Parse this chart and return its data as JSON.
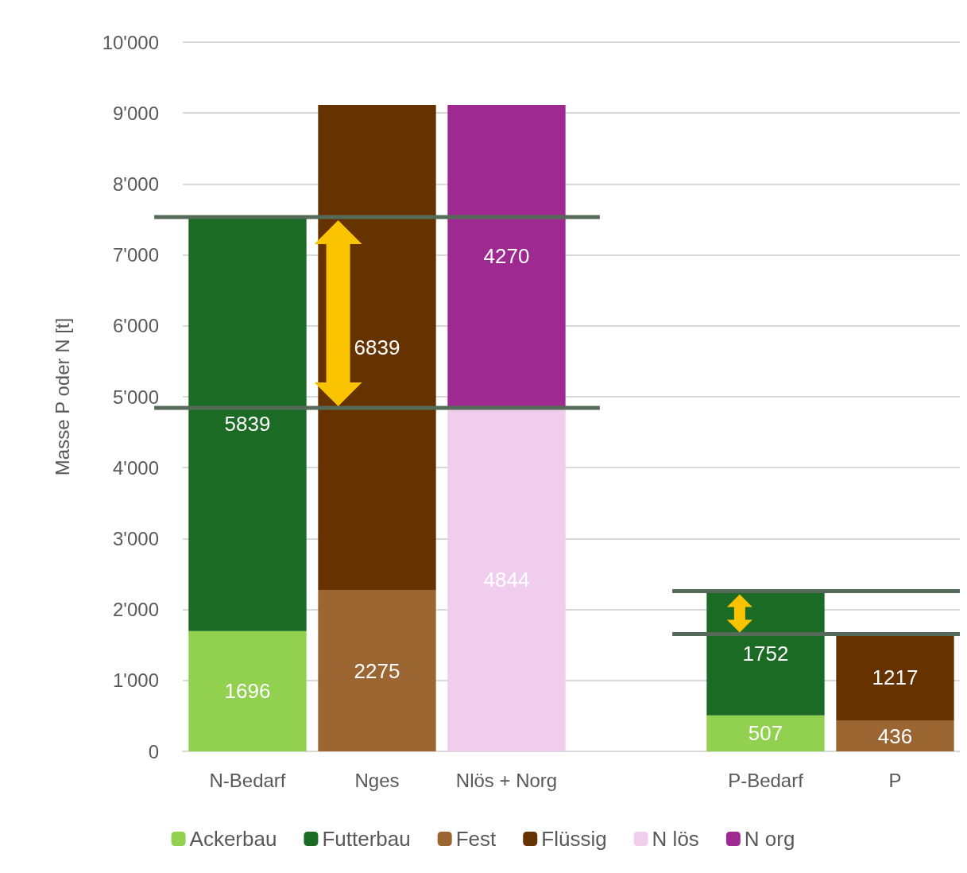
{
  "chart_data": {
    "type": "bar",
    "stacked": true,
    "ylabel": "Masse P oder N [t]",
    "categories": [
      "N-Bedarf",
      "Nges",
      "Nlös + Norg",
      null,
      "P-Bedarf",
      "P"
    ],
    "series": [
      {
        "name": "Ackerbau",
        "color": "#92d050",
        "values": [
          1696,
          null,
          null,
          null,
          507,
          null
        ]
      },
      {
        "name": "Futterbau",
        "color": "#1b6b25",
        "values": [
          5839,
          null,
          null,
          null,
          1752,
          null
        ]
      },
      {
        "name": "Fest",
        "color": "#9c6632",
        "values": [
          null,
          2275,
          null,
          null,
          null,
          436
        ]
      },
      {
        "name": "Flüssig",
        "color": "#663300",
        "values": [
          null,
          6839,
          null,
          null,
          null,
          1217
        ]
      },
      {
        "name": "N lös",
        "color": "#f0cdec",
        "values": [
          null,
          null,
          4844,
          null,
          null,
          null
        ]
      },
      {
        "name": "N org",
        "color": "#9e2a91",
        "values": [
          null,
          null,
          4270,
          null,
          null,
          null
        ]
      }
    ],
    "ylim": [
      0,
      10000
    ],
    "yticks": [
      0,
      {
        "value": 1000,
        "label": "1'000"
      },
      {
        "value": 2000,
        "label": "2'000"
      },
      {
        "value": 3000,
        "label": "3'000"
      },
      {
        "value": 4000,
        "label": "4'000"
      },
      {
        "value": 5000,
        "label": "5'000"
      },
      {
        "value": 6000,
        "label": "6'000"
      },
      {
        "value": 7000,
        "label": "7'000"
      },
      {
        "value": 8000,
        "label": "8'000"
      },
      {
        "value": 9000,
        "label": "9'000"
      },
      {
        "value": 10000,
        "label": "10'000"
      }
    ],
    "ref_lines": [
      {
        "axis": "y",
        "value": 7535,
        "color": "#566a59"
      },
      {
        "axis": "y",
        "value": 4844,
        "color": "#566a59"
      },
      {
        "axis": "y",
        "value": 2259,
        "color": "#566a59"
      },
      {
        "axis": "y",
        "value": 1653,
        "color": "#566a59"
      }
    ],
    "grid": "y",
    "legend": "bottom",
    "data_labels": true
  }
}
